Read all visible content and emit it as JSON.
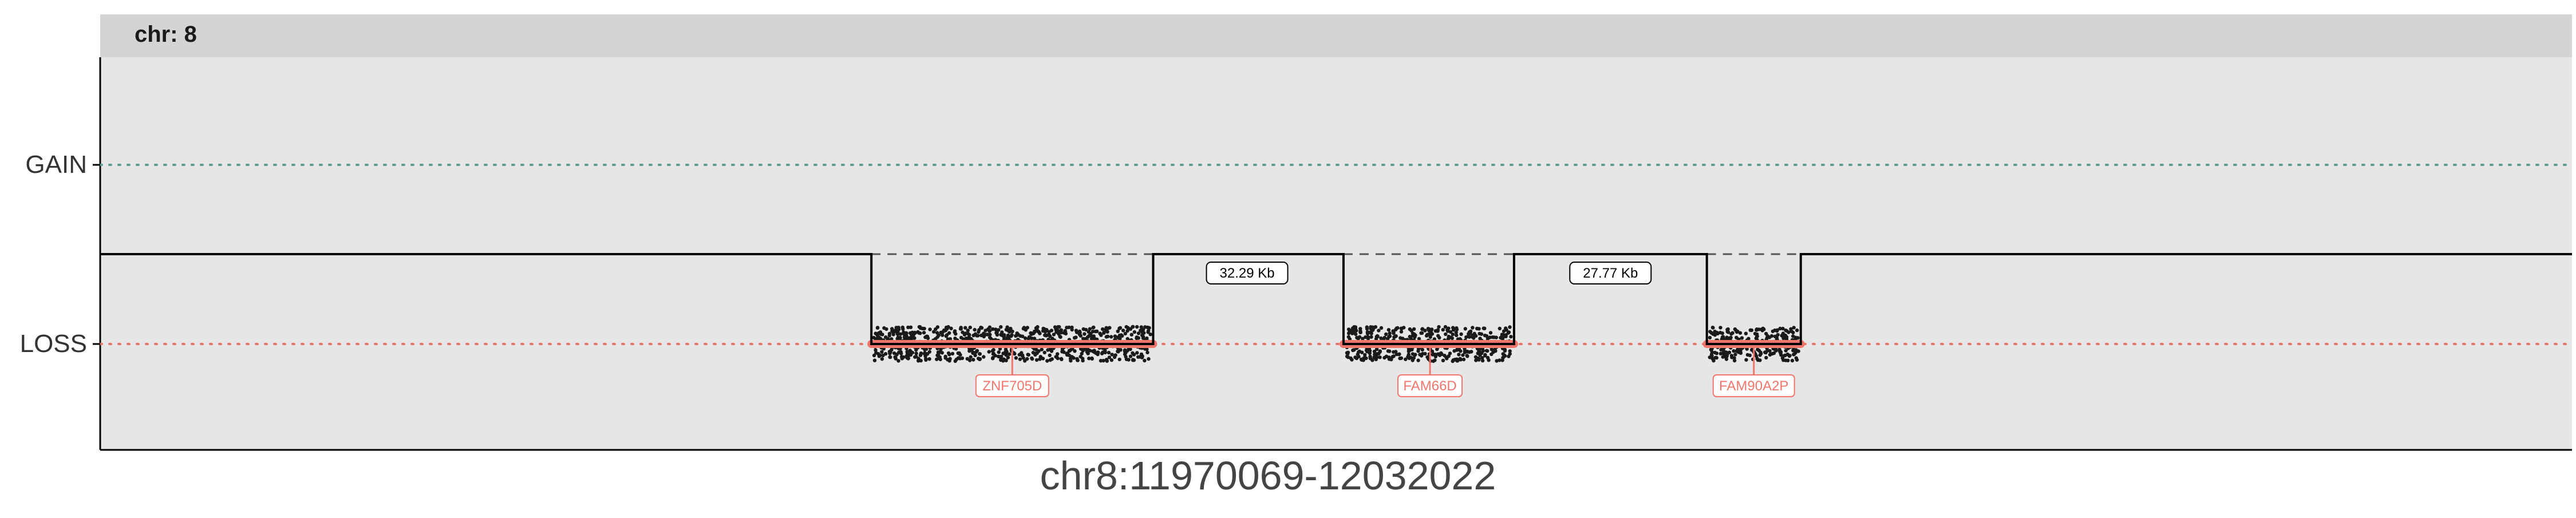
{
  "chart_data": {
    "type": "scatter",
    "facet_label": "chr: 8",
    "xlabel": "chr8:11970069-12032022",
    "ylabel": "",
    "y_categories": [
      "GAIN",
      "LOSS"
    ],
    "x_range": [
      0,
      100
    ],
    "grid": false,
    "legend": "none",
    "colors": {
      "panel_bg": "#e6e6e6",
      "strip_bg": "#d4d4d4",
      "gain_line": "#5f9e9a",
      "loss_line": "#e8736b",
      "segment": "#000000",
      "points": "#1a1a1a",
      "gene_bar": "#f0766d",
      "gene_label": "#f0766d"
    },
    "segments": [
      {
        "x_start": 0,
        "x_end": 31.2,
        "state": "neutral"
      },
      {
        "x_start": 31.2,
        "x_end": 42.6,
        "state": "LOSS"
      },
      {
        "x_start": 42.6,
        "x_end": 50.3,
        "state": "neutral"
      },
      {
        "x_start": 50.3,
        "x_end": 57.2,
        "state": "LOSS"
      },
      {
        "x_start": 57.2,
        "x_end": 65.0,
        "state": "neutral"
      },
      {
        "x_start": 65.0,
        "x_end": 68.8,
        "state": "LOSS"
      },
      {
        "x_start": 68.8,
        "x_end": 100,
        "state": "neutral"
      }
    ],
    "genes": [
      {
        "name": "ZNF705D",
        "x_start": 31.2,
        "x_end": 42.6,
        "label_x": 36.9
      },
      {
        "name": "FAM66D",
        "x_start": 50.3,
        "x_end": 57.2,
        "label_x": 53.8
      },
      {
        "name": "FAM90A2P",
        "x_start": 65.0,
        "x_end": 68.8,
        "label_x": 66.9
      }
    ],
    "gaps": [
      {
        "label": "32.29 Kb",
        "x_start": 42.6,
        "x_end": 50.3,
        "label_x": 46.4
      },
      {
        "label": "27.77 Kb",
        "x_start": 57.2,
        "x_end": 65.0,
        "label_x": 61.1
      }
    ]
  }
}
